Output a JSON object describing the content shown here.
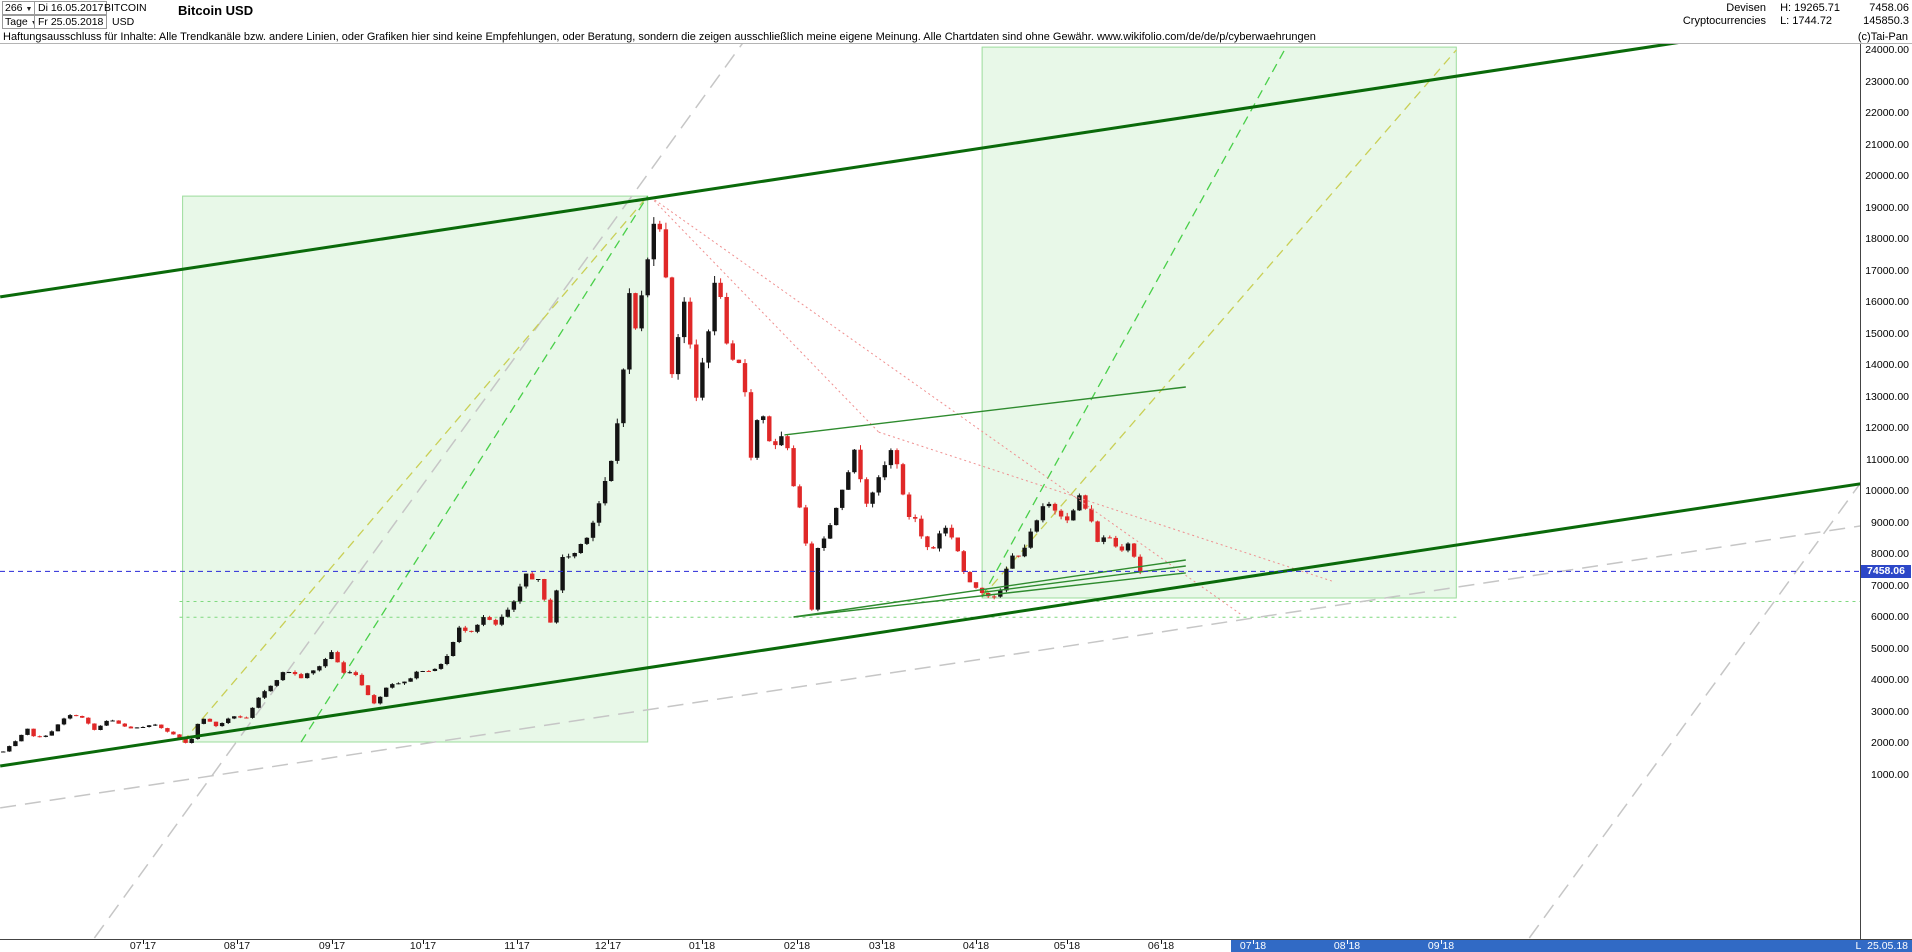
{
  "header": {
    "bars_count": "266",
    "period_label": "Tage",
    "date_from": "Di 16.05.2017",
    "date_to": "Fr 25.05.2018",
    "symbol": "BITCOIN",
    "currency": "USD",
    "title": "Bitcoin USD",
    "category_line1": "Devisen",
    "category_line2": "Cryptocurrencies",
    "high_label": "H: 19265.71",
    "low_label": "L: 1744.72",
    "last_price": "7458.06",
    "volume": "145850.3",
    "copyright": "(c)Tai-Pan"
  },
  "disclaimer": "Haftungsausschluss für Inhalte: Alle Trendkanäle bzw. andere Linien, oder Grafiken hier sind keine Empfehlungen, oder Beratung, sondern die zeigen ausschließlich meine eigene Meinung. Alle Chartdaten sind ohne Gewähr.  www.wikifolio.com/de/de/p/cyberwaehrungen",
  "status": {
    "last_label": "L",
    "last_date": "25.05.18"
  },
  "chart_data": {
    "type": "candlestick",
    "title": "Bitcoin USD",
    "timeframe": "Tage (daily)",
    "range": {
      "from": "16.05.2017",
      "to": "25.05.2018"
    },
    "high": 19265.71,
    "low": 1744.72,
    "last": 7458.06,
    "y_axis": {
      "scale": "linear",
      "unit": "USD",
      "tick_max": 24000,
      "tick_min": 1000,
      "tick_step": 1000,
      "decimals": 2
    },
    "x_axis": {
      "labels": [
        {
          "text": "07 17",
          "day": 46
        },
        {
          "text": "08 17",
          "day": 77
        },
        {
          "text": "09 17",
          "day": 108
        },
        {
          "text": "10 17",
          "day": 138
        },
        {
          "text": "11 17",
          "day": 169
        },
        {
          "text": "12 17",
          "day": 199
        },
        {
          "text": "01 18",
          "day": 230
        },
        {
          "text": "02 18",
          "day": 261
        },
        {
          "text": "03 18",
          "day": 289
        },
        {
          "text": "04 18",
          "day": 320
        },
        {
          "text": "05 18",
          "day": 350
        },
        {
          "text": "06 18",
          "day": 381
        },
        {
          "text": "07 18",
          "day": 411
        },
        {
          "text": "08 18",
          "day": 442
        },
        {
          "text": "09 18",
          "day": 473
        }
      ],
      "highlight_start_day": 404,
      "highlight_color": "#316ac5"
    },
    "last_price_line": {
      "price": 7458.06,
      "line_color": "#2727d8",
      "tag_bg": "#2c47c8"
    },
    "candles": {
      "sample_days": 2,
      "up_color": "#141414",
      "down_color": "#e02828",
      "base_date": "2017-05-16",
      "price_path": [
        [
          "2017-05-16",
          1735
        ],
        [
          "2017-05-20",
          2050
        ],
        [
          "2017-05-24",
          2440
        ],
        [
          "2017-05-27",
          2150
        ],
        [
          "2017-05-31",
          2300
        ],
        [
          "2017-06-06",
          2870
        ],
        [
          "2017-06-10",
          2900
        ],
        [
          "2017-06-15",
          2420
        ],
        [
          "2017-06-20",
          2760
        ],
        [
          "2017-06-26",
          2480
        ],
        [
          "2017-07-01",
          2500
        ],
        [
          "2017-07-05",
          2600
        ],
        [
          "2017-07-10",
          2340
        ],
        [
          "2017-07-16",
          1930
        ],
        [
          "2017-07-20",
          2850
        ],
        [
          "2017-07-25",
          2550
        ],
        [
          "2017-07-31",
          2870
        ],
        [
          "2017-08-04",
          2780
        ],
        [
          "2017-08-08",
          3420
        ],
        [
          "2017-08-12",
          3850
        ],
        [
          "2017-08-17",
          4330
        ],
        [
          "2017-08-22",
          4090
        ],
        [
          "2017-08-27",
          4350
        ],
        [
          "2017-09-01",
          4900
        ],
        [
          "2017-09-05",
          4230
        ],
        [
          "2017-09-08",
          4330
        ],
        [
          "2017-09-15",
          3250
        ],
        [
          "2017-09-20",
          3900
        ],
        [
          "2017-09-25",
          3930
        ],
        [
          "2017-09-30",
          4340
        ],
        [
          "2017-10-05",
          4320
        ],
        [
          "2017-10-09",
          4770
        ],
        [
          "2017-10-13",
          5640
        ],
        [
          "2017-10-17",
          5590
        ],
        [
          "2017-10-21",
          6000
        ],
        [
          "2017-10-25",
          5750
        ],
        [
          "2017-10-31",
          6450
        ],
        [
          "2017-11-04",
          7380
        ],
        [
          "2017-11-08",
          7150
        ],
        [
          "2017-11-12",
          5880
        ],
        [
          "2017-11-16",
          7870
        ],
        [
          "2017-11-20",
          8040
        ],
        [
          "2017-11-25",
          8750
        ],
        [
          "2017-11-29",
          9900
        ],
        [
          "2017-12-03",
          11250
        ],
        [
          "2017-12-06",
          14000
        ],
        [
          "2017-12-08",
          16200
        ],
        [
          "2017-12-10",
          15200
        ],
        [
          "2017-12-13",
          16650
        ],
        [
          "2017-12-17",
          19350
        ],
        [
          "2017-12-20",
          16700
        ],
        [
          "2017-12-22",
          13800
        ],
        [
          "2017-12-26",
          16100
        ],
        [
          "2017-12-30",
          12950
        ],
        [
          "2018-01-03",
          15200
        ],
        [
          "2018-01-06",
          17150
        ],
        [
          "2018-01-09",
          14550
        ],
        [
          "2018-01-12",
          13800
        ],
        [
          "2018-01-14",
          14200
        ],
        [
          "2018-01-17",
          11150
        ],
        [
          "2018-01-20",
          12800
        ],
        [
          "2018-01-24",
          11250
        ],
        [
          "2018-01-28",
          11800
        ],
        [
          "2018-01-31",
          10200
        ],
        [
          "2018-02-03",
          9250
        ],
        [
          "2018-02-06",
          6300
        ],
        [
          "2018-02-08",
          8250
        ],
        [
          "2018-02-12",
          8900
        ],
        [
          "2018-02-16",
          10150
        ],
        [
          "2018-02-20",
          11230
        ],
        [
          "2018-02-24",
          9700
        ],
        [
          "2018-02-28",
          10350
        ],
        [
          "2018-03-05",
          11500
        ],
        [
          "2018-03-09",
          9250
        ],
        [
          "2018-03-12",
          9150
        ],
        [
          "2018-03-15",
          8250
        ],
        [
          "2018-03-18",
          8200
        ],
        [
          "2018-03-21",
          8950
        ],
        [
          "2018-03-25",
          8450
        ],
        [
          "2018-03-29",
          7100
        ],
        [
          "2018-04-01",
          6950
        ],
        [
          "2018-04-06",
          6650
        ],
        [
          "2018-04-09",
          6800
        ],
        [
          "2018-04-12",
          7890
        ],
        [
          "2018-04-16",
          8050
        ],
        [
          "2018-04-20",
          8850
        ],
        [
          "2018-04-24",
          9650
        ],
        [
          "2018-04-28",
          9350
        ],
        [
          "2018-05-02",
          9100
        ],
        [
          "2018-05-05",
          9850
        ],
        [
          "2018-05-08",
          9250
        ],
        [
          "2018-05-11",
          8450
        ],
        [
          "2018-05-15",
          8550
        ],
        [
          "2018-05-18",
          8100
        ],
        [
          "2018-05-21",
          8400
        ],
        [
          "2018-05-23",
          7950
        ],
        [
          "2018-05-25",
          7458.06
        ]
      ]
    },
    "overlays": {
      "channel_lines": {
        "color": "#0a6a0a",
        "width": 3,
        "lines": [
          {
            "from": [
              -1,
              16170
            ],
            "to": [
              628,
              25370
            ]
          },
          {
            "from": [
              -1,
              1280
            ],
            "to": [
              628,
              10490
            ]
          }
        ]
      },
      "projection_boxes": {
        "fill": "rgba(150,225,150,0.22)",
        "border": "#9cdc9c",
        "boxes": [
          {
            "days": [
              59,
              212
            ],
            "prices": [
              2040,
              19370
            ]
          },
          {
            "days": [
              322,
              478
            ],
            "prices": [
              6610,
              24100
            ]
          }
        ]
      },
      "dashed_yellow": {
        "color": "#c9cf55",
        "width": 1.3,
        "dash": "9 6",
        "lines": [
          {
            "from": [
              59,
              2040
            ],
            "to": [
              212,
              19370
            ]
          },
          {
            "from": [
              322,
              6644
            ],
            "to": [
              478,
              24010
            ]
          }
        ]
      },
      "dashed_green": {
        "color": "#49cf49",
        "width": 1.3,
        "dash": "9 6",
        "lines": [
          {
            "from": [
              98,
              2040
            ],
            "to": [
              212,
              19370
            ]
          },
          {
            "from": [
              322,
              6644
            ],
            "to": [
              422,
              24100
            ]
          }
        ]
      },
      "dashed_gray": {
        "color": "#c6c6c6",
        "width": 1.5,
        "dash": "16 9",
        "lines": [
          {
            "from": [
              30,
              -4180
            ],
            "to": [
              244,
              24330
            ]
          },
          {
            "from": [
              502,
              -4180
            ],
            "to": [
              628,
              12520
            ]
          },
          {
            "from": [
              -1,
              -50
            ],
            "to": [
              628,
              9150
            ]
          }
        ]
      },
      "dotted_red": {
        "color": "#ef8f8f",
        "width": 1,
        "dash": "2 3",
        "lines": [
          {
            "from": [
              213,
              19340
            ],
            "to": [
              288,
              11880
            ]
          },
          {
            "from": [
              288,
              11880
            ],
            "to": [
              438,
              7120
            ]
          },
          {
            "from": [
              213,
              19340
            ],
            "to": [
              407,
              6100
            ]
          }
        ]
      },
      "trend_green": {
        "color": "#2e8b2e",
        "width": 1.4,
        "lines": [
          {
            "from": [
              257,
              11790
            ],
            "to": [
              389,
              13310
            ]
          },
          {
            "from": [
              260,
              6010
            ],
            "to": [
              389,
              7820
            ]
          },
          {
            "from": [
              323,
              6800
            ],
            "to": [
              389,
              7630
            ]
          },
          {
            "from": [
              260,
              6010
            ],
            "to": [
              389,
              7410
            ]
          }
        ]
      },
      "support_levels": {
        "color": "#7fd87f",
        "width": 1,
        "dash": "3 4",
        "lines": [
          {
            "price": 6500,
            "days": [
              58,
              611
            ]
          },
          {
            "price": 6000,
            "days": [
              58,
              478
            ]
          }
        ]
      }
    }
  }
}
